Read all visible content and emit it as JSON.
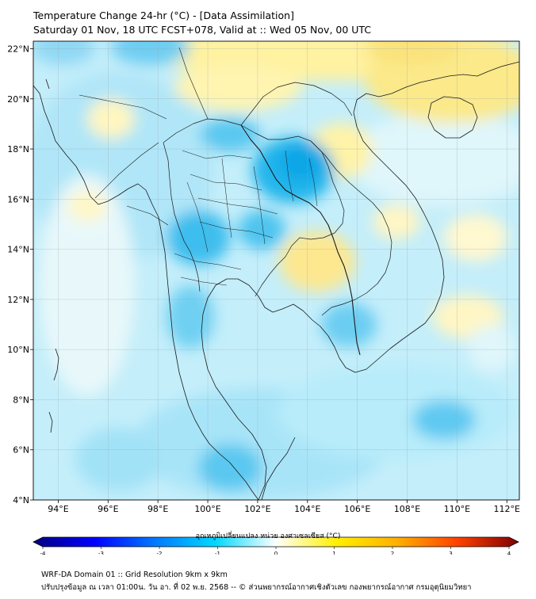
{
  "title_line1": "Temperature Change 24-hr (°C) - [Data Assimilation]",
  "title_line2": "Saturday 01 Nov, 18 UTC FCST+078, Valid at :: Wed 05 Nov, 00 UTC",
  "map": {
    "lon_range": [
      93,
      112.5
    ],
    "lat_range": [
      4,
      22.3
    ],
    "x_ticks": [
      "94°E",
      "96°E",
      "98°E",
      "100°E",
      "102°E",
      "104°E",
      "106°E",
      "108°E",
      "110°E",
      "112°E"
    ],
    "x_tick_values": [
      94,
      96,
      98,
      100,
      102,
      104,
      106,
      108,
      110,
      112
    ],
    "y_ticks": [
      "4°N",
      "6°N",
      "8°N",
      "10°N",
      "12°N",
      "14°N",
      "16°N",
      "18°N",
      "20°N",
      "22°N"
    ],
    "y_tick_values": [
      4,
      6,
      8,
      10,
      12,
      14,
      16,
      18,
      20,
      22
    ],
    "grid": true
  },
  "colorbar": {
    "title": "อุณหภูมิเปลี่ยนแปลง หน่วย องศาเซลเซียส (°C)",
    "tick_labels": [
      "-4",
      "-3",
      "-2",
      "-1",
      "0",
      "1",
      "2",
      "3",
      "4"
    ],
    "tick_values": [
      -4,
      -3,
      -2,
      -1,
      0,
      1,
      2,
      3,
      4
    ],
    "range": [
      -4,
      4
    ],
    "colors": [
      "#00007f",
      "#0000ff",
      "#0078ff",
      "#00d8ff",
      "#ffffff",
      "#fff000",
      "#ffb000",
      "#ff4000",
      "#7f0000"
    ]
  },
  "footer_line1": "WRF-DA Domain 01 :: Grid Resolution 9km x 9km",
  "footer_line2": "ปรับปรุงข้อมูล ณ เวลา 01:00น. วัน อา. ที่ 02 พ.ย. 2568 -- © ส่วนพยากรณ์อากาศเชิงตัวเลข กองพยากรณ์อากาศ กรมอุตุนิยมวิทยา"
}
